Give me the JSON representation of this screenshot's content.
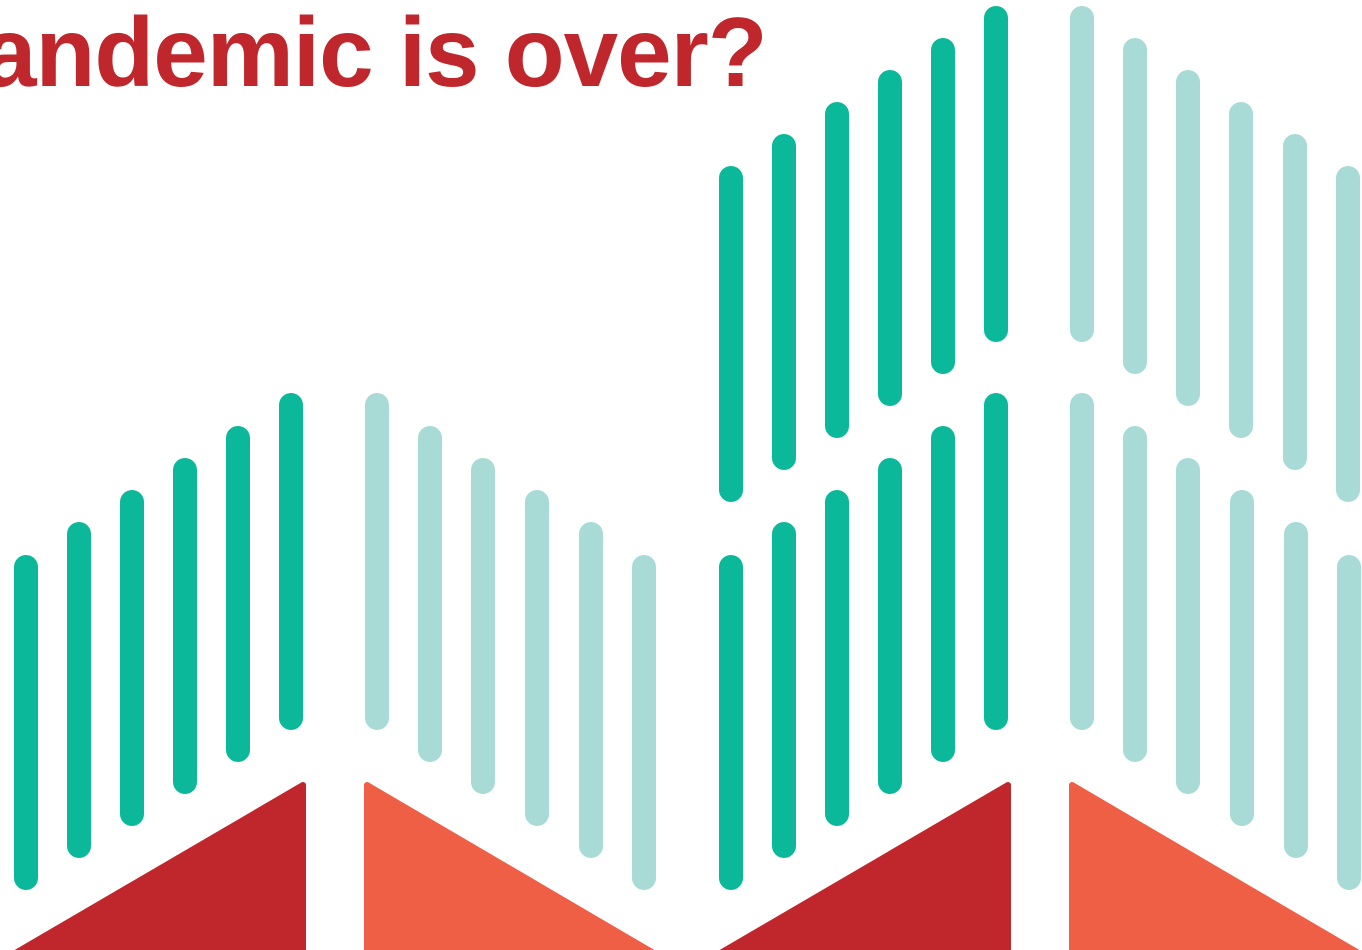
{
  "slide": {
    "headline": "andemic is over?",
    "headline_color": "#c0272d",
    "palette": {
      "bar_dark": "#0bb89a",
      "bar_light": "#a8dbd5",
      "triangle_dark": "#c0272d",
      "triangle_light": "#ef5f46"
    },
    "decor": "teal vertical bar pattern with red and coral triangles"
  }
}
